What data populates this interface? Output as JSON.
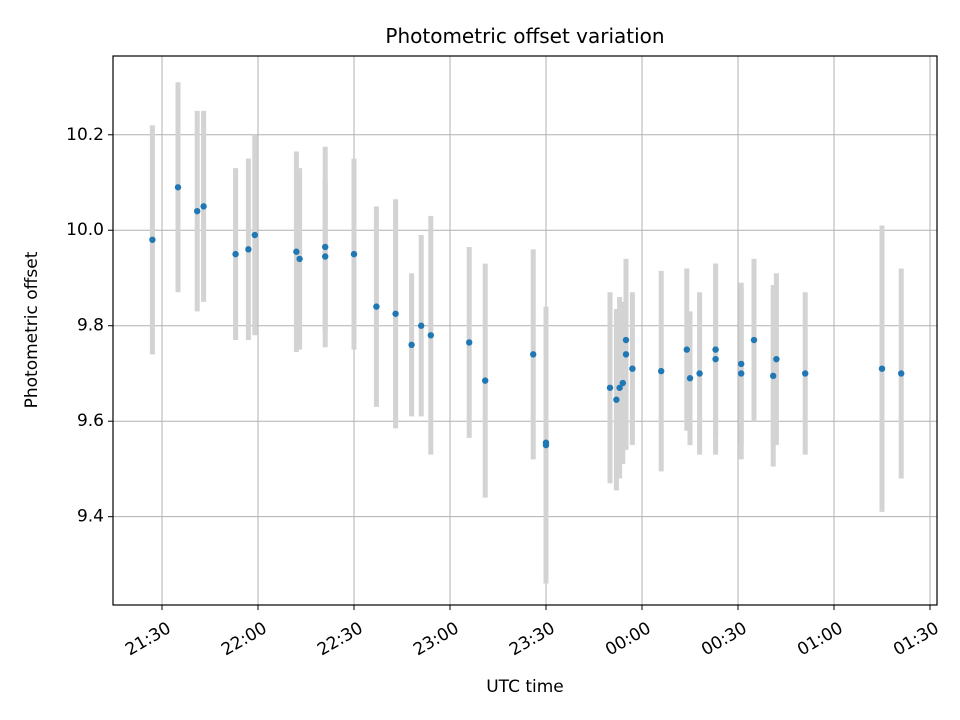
{
  "chart_data": {
    "type": "scatter",
    "title": "Photometric offset variation",
    "xlabel": "UTC time",
    "ylabel": "Photometric offset",
    "x_tick_labels": [
      "21:30",
      "22:00",
      "22:30",
      "23:00",
      "23:30",
      "00:00",
      "00:30",
      "01:00",
      "01:30"
    ],
    "y_tick_labels": [
      "9.4",
      "9.6",
      "9.8",
      "10.0",
      "10.2"
    ],
    "ylim": [
      9.215,
      10.365
    ],
    "grid": true,
    "colors": {
      "marker": "#1f77b4",
      "errorbar": "#d3d3d3",
      "grid": "#b0b0b0"
    },
    "series": [
      {
        "x": [
          "21:27",
          "21:35",
          "21:41",
          "21:43",
          "21:53",
          "21:57",
          "21:59",
          "22:12",
          "22:13",
          "22:21",
          "22:21",
          "22:30",
          "22:37",
          "22:43",
          "22:48",
          "22:51",
          "22:54",
          "23:06",
          "23:11",
          "23:26",
          "23:30",
          "23:30",
          "23:50",
          "23:52",
          "23:53",
          "23:54",
          "23:55",
          "23:55",
          "23:57",
          "00:06",
          "00:14",
          "00:15",
          "00:18",
          "00:23",
          "00:23",
          "00:31",
          "00:31",
          "00:35",
          "00:41",
          "00:42",
          "00:51",
          "01:15",
          "01:21"
        ],
        "y": [
          9.98,
          10.09,
          10.04,
          10.05,
          9.95,
          9.96,
          9.99,
          9.955,
          9.94,
          9.945,
          9.965,
          9.95,
          9.84,
          9.825,
          9.76,
          9.8,
          9.78,
          9.765,
          9.685,
          9.74,
          9.55,
          9.555,
          9.67,
          9.645,
          9.67,
          9.68,
          9.74,
          9.77,
          9.71,
          9.705,
          9.75,
          9.69,
          9.7,
          9.75,
          9.73,
          9.7,
          9.72,
          9.77,
          9.695,
          9.73,
          9.7,
          9.71,
          9.7
        ],
        "yerr": [
          0.24,
          0.22,
          0.21,
          0.2,
          0.18,
          0.19,
          0.21,
          0.21,
          0.19,
          0.16,
          0.21,
          0.2,
          0.21,
          0.24,
          0.15,
          0.19,
          0.25,
          0.2,
          0.245,
          0.22,
          0.29,
          0.25,
          0.2,
          0.19,
          0.19,
          0.17,
          0.2,
          0.16,
          0.16,
          0.21,
          0.17,
          0.14,
          0.17,
          0.18,
          0.2,
          0.18,
          0.17,
          0.17,
          0.19,
          0.18,
          0.17,
          0.3,
          0.22
        ]
      }
    ]
  }
}
